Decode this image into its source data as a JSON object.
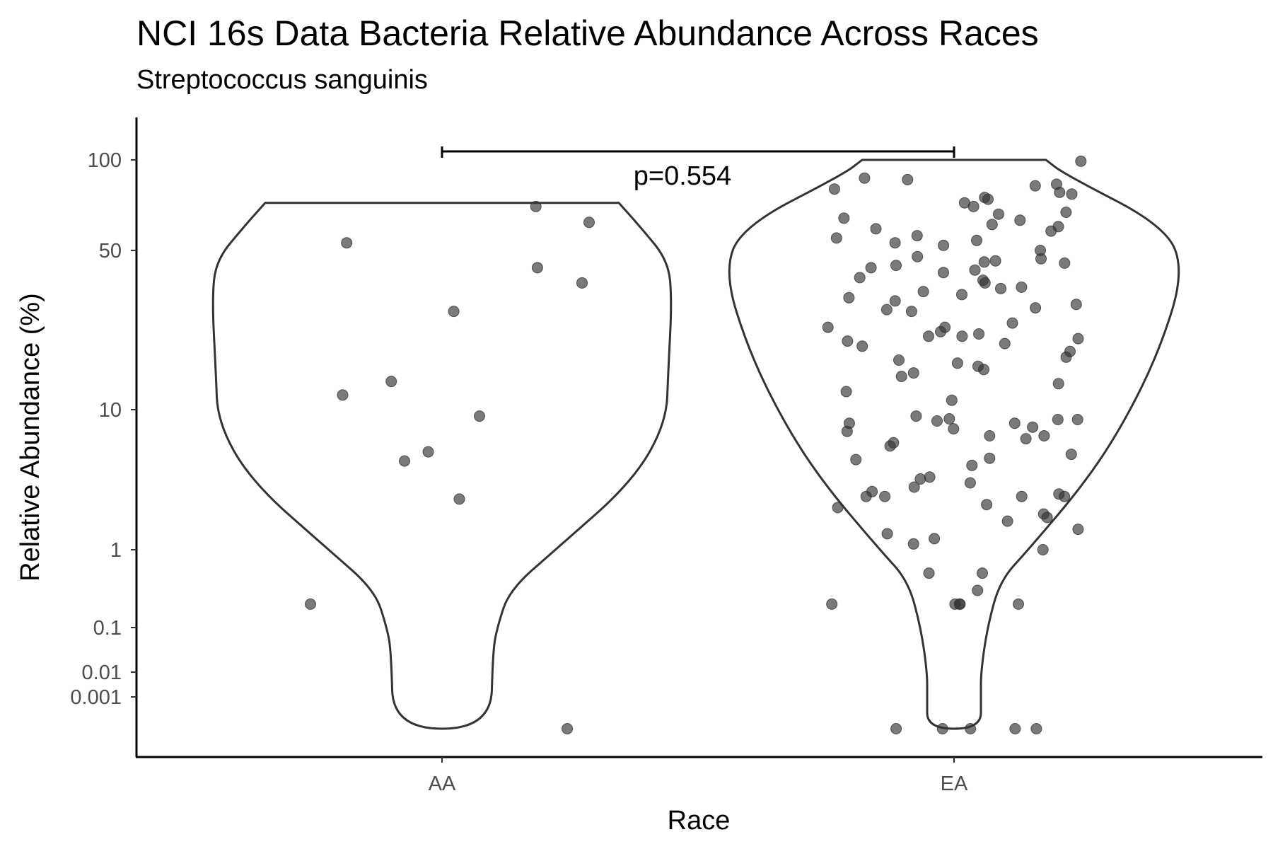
{
  "chart_data": {
    "type": "violin",
    "title": "NCI 16s Data Bacteria Relative Abundance Across Races",
    "subtitle": "Streptococcus sanguinis",
    "xlabel": "Race",
    "ylabel": "Relative Abundance (%)",
    "y_scale": "pseudo-log",
    "y_ticks": [
      "100",
      "50",
      "10",
      "1",
      "0.1",
      "0.01",
      "0.001"
    ],
    "categories": [
      "AA",
      "EA"
    ],
    "comparison": {
      "groups": [
        "AA",
        "EA"
      ],
      "label": "p=0.554"
    },
    "grid": false,
    "legend": "none",
    "colors": {
      "points": "#333333",
      "outline": "#333333"
    },
    "series": [
      {
        "name": "AA",
        "values": [
          0,
          0.2,
          2.3,
          4.3,
          5,
          9,
          11.6,
          13.3,
          27,
          36,
          42,
          53,
          62,
          70
        ]
      },
      {
        "name": "EA",
        "values": [
          0,
          0,
          0,
          0,
          0,
          0.2,
          0.2,
          0.2,
          0.2,
          0.2,
          0.3,
          0.5,
          0.5,
          1,
          1.1,
          1.2,
          1.3,
          1.4,
          1.6,
          1.7,
          1.8,
          2,
          2.1,
          2.4,
          2.4,
          2.4,
          2.4,
          2.5,
          2.6,
          2.8,
          3,
          3.2,
          3.3,
          4,
          4.4,
          4.5,
          4.8,
          5.5,
          5.8,
          6.2,
          6.5,
          6.5,
          7,
          7.3,
          7.5,
          8,
          8,
          8.3,
          8.5,
          8.5,
          8.6,
          9,
          11,
          12,
          13,
          14,
          14.5,
          15,
          15.5,
          16,
          16.5,
          17,
          18,
          19,
          19.5,
          20,
          20.5,
          21,
          21,
          21.5,
          22,
          23,
          23,
          24,
          27,
          27.5,
          28,
          29,
          30,
          31,
          32,
          33,
          34,
          34.5,
          36,
          37,
          38,
          40,
          41,
          42,
          43,
          44,
          44.5,
          45,
          46,
          47,
          50,
          52,
          53,
          54,
          55,
          56,
          58,
          59,
          60,
          61,
          63,
          64,
          66,
          67,
          70,
          72,
          74,
          75,
          77,
          78,
          80,
          82,
          83,
          86,
          87,
          99
        ]
      }
    ]
  }
}
